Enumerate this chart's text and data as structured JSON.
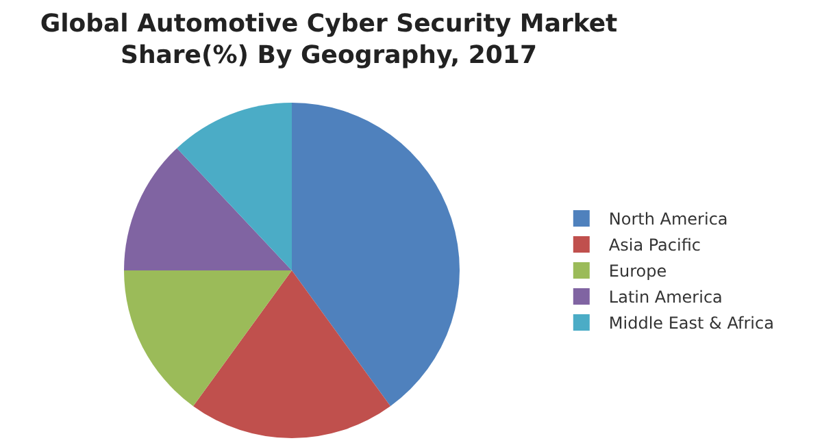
{
  "chart_data": {
    "type": "pie",
    "title": "Global Automotive Cyber Security Market\nShare(%) By Geography, 2017",
    "categories": [
      "North America",
      "Asia Pacific",
      "Europe",
      "Latin America",
      "Middle East & Africa"
    ],
    "values": [
      40,
      20,
      15,
      13,
      12
    ],
    "colors": [
      "#4f81bd",
      "#c0504d",
      "#9bbb59",
      "#8064a2",
      "#4bacc6"
    ],
    "legend": "right"
  }
}
